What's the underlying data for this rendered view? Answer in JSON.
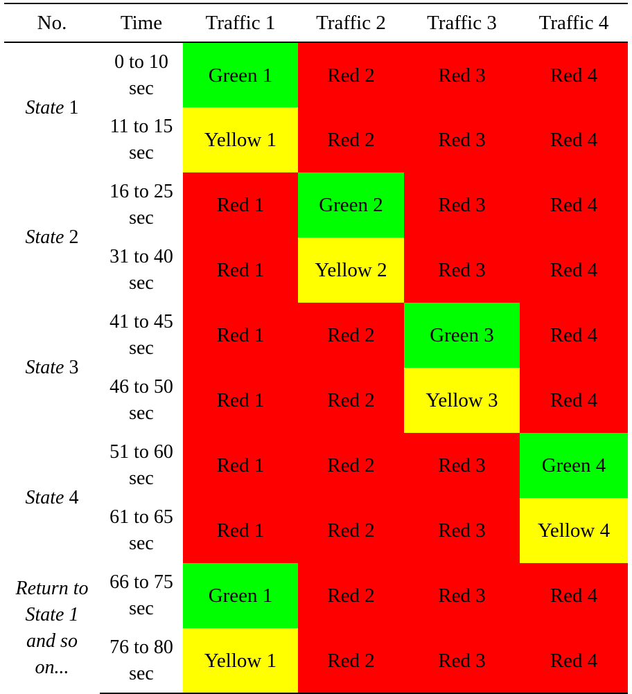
{
  "header": {
    "no": "No.",
    "time": "Time",
    "traffic": [
      "Traffic 1",
      "Traffic 2",
      "Traffic 3",
      "Traffic 4"
    ]
  },
  "colors": {
    "red": "#ff0000",
    "green": "#00ff00",
    "yellow": "#ffff00"
  },
  "states": [
    {
      "label": "State",
      "label_num": "1",
      "rows": [
        {
          "time_line1": "0 to 10",
          "time_line2": "sec",
          "cells": [
            {
              "text": "Green 1",
              "color": "green"
            },
            {
              "text": "Red 2",
              "color": "red"
            },
            {
              "text": "Red 3",
              "color": "red"
            },
            {
              "text": "Red 4",
              "color": "red"
            }
          ]
        },
        {
          "time_line1": "11 to 15",
          "time_line2": "sec",
          "cells": [
            {
              "text": "Yellow 1",
              "color": "yellow"
            },
            {
              "text": "Red 2",
              "color": "red"
            },
            {
              "text": "Red 3",
              "color": "red"
            },
            {
              "text": "Red 4",
              "color": "red"
            }
          ]
        }
      ]
    },
    {
      "label": "State",
      "label_num": "2",
      "rows": [
        {
          "time_line1": "16 to 25",
          "time_line2": "sec",
          "cells": [
            {
              "text": "Red 1",
              "color": "red"
            },
            {
              "text": "Green 2",
              "color": "green"
            },
            {
              "text": "Red 3",
              "color": "red"
            },
            {
              "text": "Red 4",
              "color": "red"
            }
          ]
        },
        {
          "time_line1": "31 to 40",
          "time_line2": "sec",
          "cells": [
            {
              "text": "Red 1",
              "color": "red"
            },
            {
              "text": "Yellow 2",
              "color": "yellow"
            },
            {
              "text": "Red 3",
              "color": "red"
            },
            {
              "text": "Red 4",
              "color": "red"
            }
          ]
        }
      ]
    },
    {
      "label": "State",
      "label_num": "3",
      "rows": [
        {
          "time_line1": "41 to 45",
          "time_line2": "sec",
          "cells": [
            {
              "text": "Red 1",
              "color": "red"
            },
            {
              "text": "Red 2",
              "color": "red"
            },
            {
              "text": "Green 3",
              "color": "green"
            },
            {
              "text": "Red 4",
              "color": "red"
            }
          ]
        },
        {
          "time_line1": "46 to 50",
          "time_line2": "sec",
          "cells": [
            {
              "text": "Red 1",
              "color": "red"
            },
            {
              "text": "Red 2",
              "color": "red"
            },
            {
              "text": "Yellow 3",
              "color": "yellow"
            },
            {
              "text": "Red 4",
              "color": "red"
            }
          ]
        }
      ]
    },
    {
      "label": "State",
      "label_num": "4",
      "rows": [
        {
          "time_line1": "51 to 60",
          "time_line2": "sec",
          "cells": [
            {
              "text": "Red 1",
              "color": "red"
            },
            {
              "text": "Red 2",
              "color": "red"
            },
            {
              "text": "Red 3",
              "color": "red"
            },
            {
              "text": "Green 4",
              "color": "green"
            }
          ]
        },
        {
          "time_line1": "61 to 65",
          "time_line2": "sec",
          "cells": [
            {
              "text": "Red 1",
              "color": "red"
            },
            {
              "text": "Red 2",
              "color": "red"
            },
            {
              "text": "Red 3",
              "color": "red"
            },
            {
              "text": "Yellow 4",
              "color": "yellow"
            }
          ]
        }
      ]
    },
    {
      "label_lines": [
        "Return to",
        "State 1",
        "and so",
        "on..."
      ],
      "rows": [
        {
          "time_line1": "66 to 75",
          "time_line2": "sec",
          "cells": [
            {
              "text": "Green 1",
              "color": "green"
            },
            {
              "text": "Red 2",
              "color": "red"
            },
            {
              "text": "Red 3",
              "color": "red"
            },
            {
              "text": "Red 4",
              "color": "red"
            }
          ]
        },
        {
          "time_line1": "76 to 80",
          "time_line2": "sec",
          "cells": [
            {
              "text": "Yellow 1",
              "color": "yellow"
            },
            {
              "text": "Red 2",
              "color": "red"
            },
            {
              "text": "Red 3",
              "color": "red"
            },
            {
              "text": "Red 4",
              "color": "red"
            }
          ]
        }
      ]
    }
  ]
}
